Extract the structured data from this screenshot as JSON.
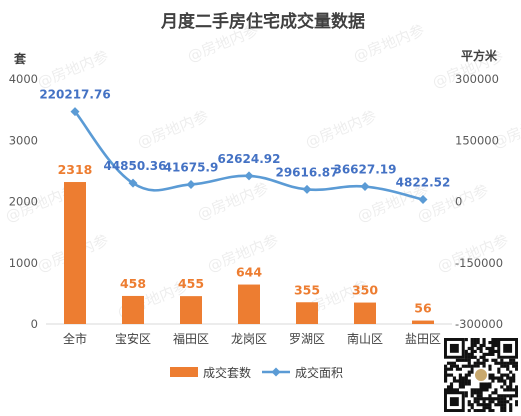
{
  "chart_data": {
    "type": "bar+line",
    "title": "月度二手房住宅成交量数据",
    "categories": [
      "全市",
      "宝安区",
      "福田区",
      "龙岗区",
      "罗湖区",
      "南山区",
      "盐田区"
    ],
    "y_left": {
      "label": "套",
      "range": [
        0,
        4000
      ],
      "ticks": [
        0,
        1000,
        2000,
        3000,
        4000
      ],
      "tick_labels": [
        "0",
        "1000",
        "2000",
        "3000",
        "4000"
      ]
    },
    "y_right": {
      "label": "平方米",
      "range": [
        -300000,
        300000
      ],
      "ticks": [
        -300000,
        -150000,
        0,
        150000,
        300000
      ],
      "tick_labels": [
        "-300000",
        "-150000",
        "0",
        "150000",
        "300000"
      ]
    },
    "series": [
      {
        "name": "成交套数",
        "type": "bar",
        "axis": "left",
        "color": "#ED7D31",
        "values": [
          2318,
          458,
          455,
          644,
          355,
          350,
          56
        ],
        "labels": [
          "2318",
          "458",
          "455",
          "644",
          "355",
          "350",
          "56"
        ]
      },
      {
        "name": "成交面积",
        "type": "line",
        "axis": "right",
        "color": "#5B9BD5",
        "label_color": "#4472C4",
        "values": [
          220217.76,
          44850.36,
          41675.9,
          62624.92,
          29616.87,
          36627.19,
          4822.52
        ],
        "labels": [
          "220217.76",
          "44850.36",
          "41675.9",
          "62624.92",
          "29616.87",
          "36627.19",
          "4822.52"
        ]
      }
    ],
    "legend": "bottom",
    "grid": false,
    "watermark": "@房地内参"
  }
}
